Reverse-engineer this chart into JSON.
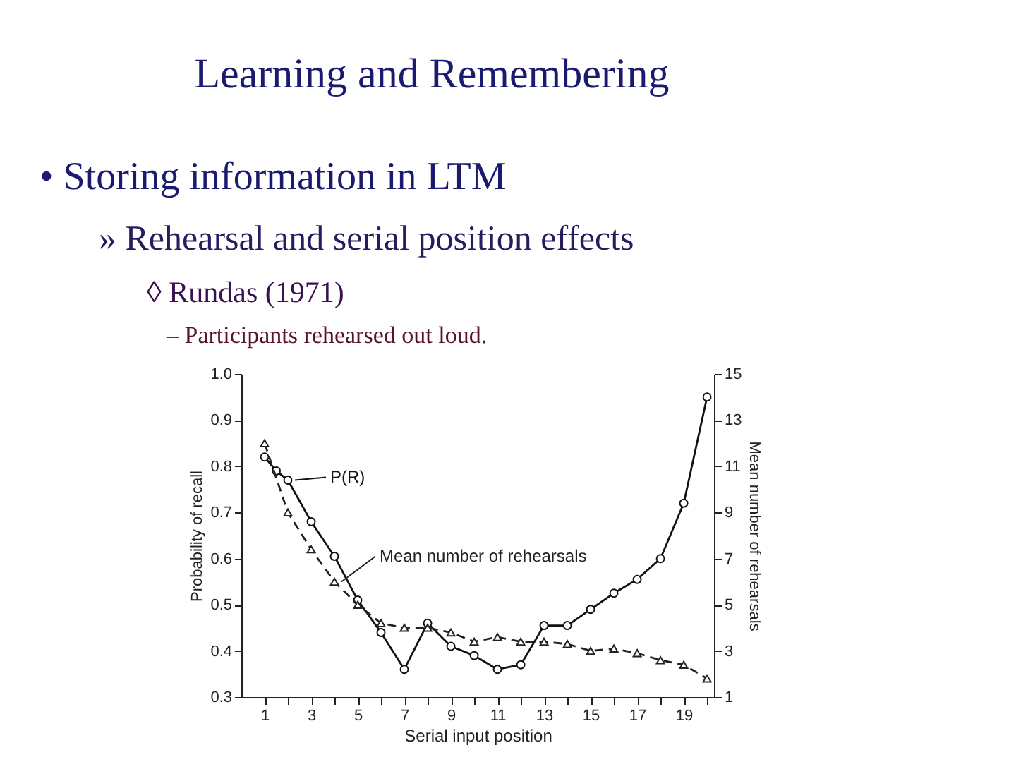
{
  "chart_data": {
    "type": "line",
    "title": "Learning and Remembering",
    "subtitle": "• Storing information in LTM",
    "annotations": [
      "» Rehearsal and serial position effects",
      "◊ Rundas (1971)",
      "– Participants rehearsed out loud."
    ],
    "xlabel": "Serial input position",
    "ylabel": "Probability of recall",
    "y2label": "Mean number of rehearsals",
    "xlim": [
      0,
      20.3
    ],
    "xticks": [
      1,
      {
        "value": 2,
        "label": null
      },
      3,
      {
        "value": 4,
        "label": null
      },
      5,
      {
        "value": 6,
        "label": null
      },
      7,
      {
        "value": 8,
        "label": null
      },
      9,
      {
        "value": 10,
        "label": null
      },
      11,
      {
        "value": 12,
        "label": null
      },
      13,
      {
        "value": 14,
        "label": null
      },
      15,
      {
        "value": 16,
        "label": null
      },
      17,
      {
        "value": 18,
        "label": null
      },
      19,
      {
        "value": 20,
        "label": null
      }
    ],
    "ylim": [
      0.3,
      1.0
    ],
    "yticks": [
      0.3,
      0.4,
      0.5,
      0.6,
      0.7,
      0.8,
      0.9,
      {
        "value": 1,
        "label": "1.0"
      }
    ],
    "y2lim": [
      1,
      15
    ],
    "y2ticks": [
      1,
      3,
      5,
      7,
      9,
      11,
      13,
      15
    ],
    "grid": false,
    "series": [
      {
        "name": "P(R)",
        "color": "#111111",
        "marker": "circle",
        "line_style": "solid",
        "x": [
          1,
          1.5,
          2,
          3,
          4,
          5,
          6,
          7,
          8,
          9,
          10,
          11,
          12,
          13,
          14,
          15,
          16,
          17,
          18,
          19,
          20
        ],
        "values": [
          0.82,
          0.79,
          0.77,
          0.68,
          0.605,
          0.51,
          0.44,
          0.36,
          0.46,
          0.41,
          0.39,
          0.36,
          0.37,
          0.455,
          0.455,
          0.49,
          0.525,
          0.555,
          0.6,
          0.72,
          0.95
        ]
      },
      {
        "name": "Mean number of rehearsals",
        "color": "#222222",
        "marker": "triangle",
        "line_style": "dashed",
        "axis": "y2",
        "x": [
          1,
          2,
          3,
          4,
          5,
          6,
          7,
          8,
          9,
          10,
          11,
          12,
          13,
          14,
          15,
          16,
          17,
          18,
          19,
          20
        ],
        "values": [
          12.0,
          9.0,
          7.4,
          6.0,
          5.0,
          4.2,
          4.0,
          4.0,
          3.8,
          3.4,
          3.6,
          3.4,
          3.4,
          3.3,
          3.0,
          3.1,
          2.9,
          2.6,
          2.4,
          1.8
        ]
      }
    ]
  }
}
